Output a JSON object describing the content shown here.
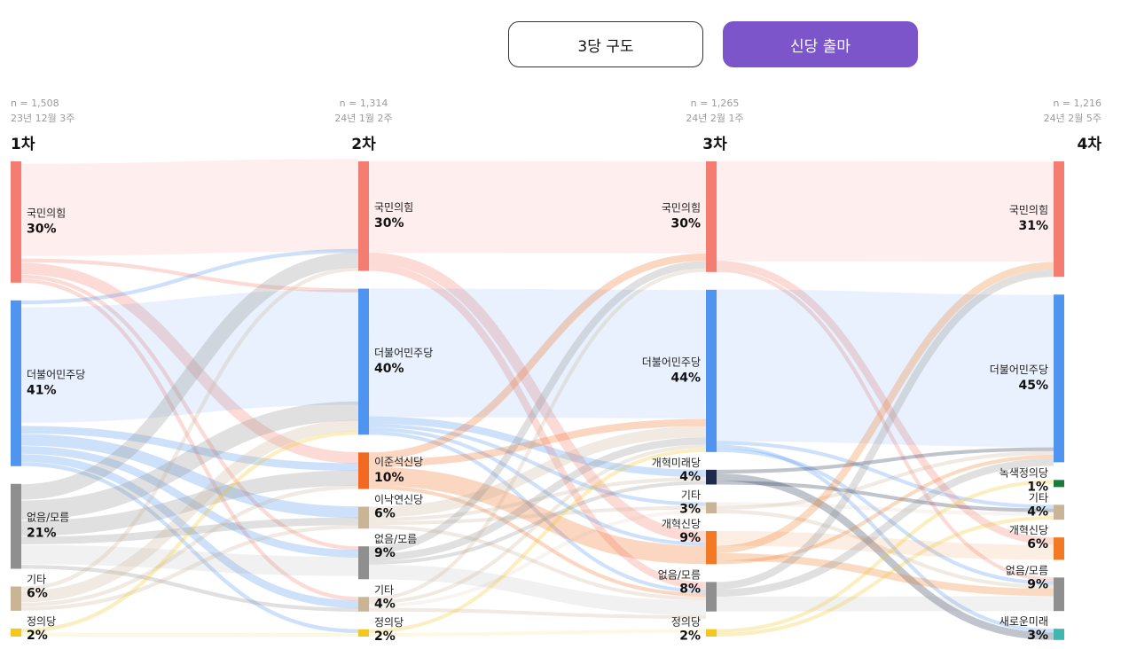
{
  "toggle": {
    "option_3party": "3당 구도",
    "option_newparty": "신당 출마",
    "selected": "option_newparty",
    "accent_color": "#7b55c9"
  },
  "columns": [
    {
      "n": "n = 1,508",
      "date": "23년 12월 3주",
      "round": "1차"
    },
    {
      "n": "n = 1,314",
      "date": "24년 1월 2주",
      "round": "2차"
    },
    {
      "n": "n = 1,265",
      "date": "24년 2월 1주",
      "round": "3차"
    },
    {
      "n": "n = 1,216",
      "date": "24년 2월 5주",
      "round": "4차"
    }
  ],
  "chart_data": {
    "type": "sankey",
    "title": "",
    "unit": "%",
    "stages": [
      "1차",
      "2차",
      "3차",
      "4차"
    ],
    "nodes": [
      [
        {
          "id": "s1_ppp",
          "name": "국민의힘",
          "pct": "30%",
          "value": 30,
          "color": "#f47c71"
        },
        {
          "id": "s1_dem",
          "name": "더불어민주당",
          "pct": "41%",
          "value": 41,
          "color": "#4f95ef"
        },
        {
          "id": "s1_none",
          "name": "없음/모름",
          "pct": "21%",
          "value": 21,
          "color": "#8f8f8f"
        },
        {
          "id": "s1_etc",
          "name": "기타",
          "pct": "6%",
          "value": 6,
          "color": "#c9b496"
        },
        {
          "id": "s1_jus",
          "name": "정의당",
          "pct": "2%",
          "value": 2,
          "color": "#f2c71f"
        }
      ],
      [
        {
          "id": "s2_ppp",
          "name": "국민의힘",
          "pct": "30%",
          "value": 30,
          "color": "#f47c71"
        },
        {
          "id": "s2_dem",
          "name": "더불어민주당",
          "pct": "40%",
          "value": 40,
          "color": "#4f95ef"
        },
        {
          "id": "s2_ljs",
          "name": "이준석신당",
          "pct": "10%",
          "value": 10,
          "color": "#f26a22"
        },
        {
          "id": "s2_lny",
          "name": "이낙연신당",
          "pct": "6%",
          "value": 6,
          "color": "#c9b496"
        },
        {
          "id": "s2_none",
          "name": "없음/모름",
          "pct": "9%",
          "value": 9,
          "color": "#8f8f8f"
        },
        {
          "id": "s2_etc",
          "name": "기타",
          "pct": "4%",
          "value": 4,
          "color": "#c9b496"
        },
        {
          "id": "s2_jus",
          "name": "정의당",
          "pct": "2%",
          "value": 2,
          "color": "#f2c71f"
        }
      ],
      [
        {
          "id": "s3_ppp",
          "name": "국민의힘",
          "pct": "30%",
          "value": 30,
          "color": "#f47c71"
        },
        {
          "id": "s3_dem",
          "name": "더불어민주당",
          "pct": "44%",
          "value": 44,
          "color": "#4f95ef"
        },
        {
          "id": "s3_rfu",
          "name": "개혁미래당",
          "pct": "4%",
          "value": 4,
          "color": "#1d2a4d"
        },
        {
          "id": "s3_etc",
          "name": "기타",
          "pct": "3%",
          "value": 3,
          "color": "#c9b496"
        },
        {
          "id": "s3_ref",
          "name": "개혁신당",
          "pct": "9%",
          "value": 9,
          "color": "#f27a24"
        },
        {
          "id": "s3_none",
          "name": "없음/모름",
          "pct": "8%",
          "value": 8,
          "color": "#8f8f8f"
        },
        {
          "id": "s3_jus",
          "name": "정의당",
          "pct": "2%",
          "value": 2,
          "color": "#f2c71f"
        }
      ],
      [
        {
          "id": "s4_ppp",
          "name": "국민의힘",
          "pct": "31%",
          "value": 31,
          "color": "#f47c71"
        },
        {
          "id": "s4_dem",
          "name": "더불어민주당",
          "pct": "45%",
          "value": 45,
          "color": "#4f95ef"
        },
        {
          "id": "s4_grn",
          "name": "녹색정의당",
          "pct": "1%",
          "value": 1,
          "color": "#1a7a3c"
        },
        {
          "id": "s4_etc",
          "name": "기타",
          "pct": "4%",
          "value": 4,
          "color": "#c9b496"
        },
        {
          "id": "s4_ref",
          "name": "개혁신당",
          "pct": "6%",
          "value": 6,
          "color": "#f27a24"
        },
        {
          "id": "s4_none",
          "name": "없음/모름",
          "pct": "9%",
          "value": 9,
          "color": "#8f8f8f"
        },
        {
          "id": "s4_nf",
          "name": "새로운미래",
          "pct": "3%",
          "value": 3,
          "color": "#3fb7b0"
        }
      ]
    ],
    "links": [
      {
        "source": "s1_ppp",
        "target": "s2_ppp",
        "value": 24
      },
      {
        "source": "s1_ppp",
        "target": "s2_dem",
        "value": 1
      },
      {
        "source": "s1_ppp",
        "target": "s2_ljs",
        "value": 3
      },
      {
        "source": "s1_ppp",
        "target": "s2_none",
        "value": 1
      },
      {
        "source": "s1_ppp",
        "target": "s2_etc",
        "value": 1
      },
      {
        "source": "s1_dem",
        "target": "s2_ppp",
        "value": 1
      },
      {
        "source": "s1_dem",
        "target": "s2_dem",
        "value": 30
      },
      {
        "source": "s1_dem",
        "target": "s2_ljs",
        "value": 2
      },
      {
        "source": "s1_dem",
        "target": "s2_lny",
        "value": 3
      },
      {
        "source": "s1_dem",
        "target": "s2_none",
        "value": 2
      },
      {
        "source": "s1_dem",
        "target": "s2_etc",
        "value": 2
      },
      {
        "source": "s1_dem",
        "target": "s2_jus",
        "value": 1
      },
      {
        "source": "s1_none",
        "target": "s2_ppp",
        "value": 4
      },
      {
        "source": "s1_none",
        "target": "s2_dem",
        "value": 5
      },
      {
        "source": "s1_none",
        "target": "s2_ljs",
        "value": 4
      },
      {
        "source": "s1_none",
        "target": "s2_lny",
        "value": 2
      },
      {
        "source": "s1_none",
        "target": "s2_none",
        "value": 5
      },
      {
        "source": "s1_none",
        "target": "s2_etc",
        "value": 1
      },
      {
        "source": "s1_etc",
        "target": "s2_ppp",
        "value": 1
      },
      {
        "source": "s1_etc",
        "target": "s2_dem",
        "value": 3
      },
      {
        "source": "s1_etc",
        "target": "s2_ljs",
        "value": 1
      },
      {
        "source": "s1_etc",
        "target": "s2_lny",
        "value": 1
      },
      {
        "source": "s1_jus",
        "target": "s2_dem",
        "value": 1
      },
      {
        "source": "s1_jus",
        "target": "s2_jus",
        "value": 1
      },
      {
        "source": "s2_ppp",
        "target": "s3_ppp",
        "value": 25
      },
      {
        "source": "s2_ppp",
        "target": "s3_ref",
        "value": 3
      },
      {
        "source": "s2_ppp",
        "target": "s3_none",
        "value": 2
      },
      {
        "source": "s2_dem",
        "target": "s3_dem",
        "value": 35
      },
      {
        "source": "s2_dem",
        "target": "s3_rfu",
        "value": 2
      },
      {
        "source": "s2_dem",
        "target": "s3_etc",
        "value": 1
      },
      {
        "source": "s2_dem",
        "target": "s3_ref",
        "value": 1
      },
      {
        "source": "s2_dem",
        "target": "s3_none",
        "value": 1
      },
      {
        "source": "s2_ljs",
        "target": "s3_ppp",
        "value": 2
      },
      {
        "source": "s2_ljs",
        "target": "s3_dem",
        "value": 2
      },
      {
        "source": "s2_ljs",
        "target": "s3_ref",
        "value": 5
      },
      {
        "source": "s2_ljs",
        "target": "s3_none",
        "value": 1
      },
      {
        "source": "s2_lny",
        "target": "s3_dem",
        "value": 3
      },
      {
        "source": "s2_lny",
        "target": "s3_rfu",
        "value": 1
      },
      {
        "source": "s2_lny",
        "target": "s3_etc",
        "value": 1
      },
      {
        "source": "s2_lny",
        "target": "s3_none",
        "value": 1
      },
      {
        "source": "s2_none",
        "target": "s3_ppp",
        "value": 2
      },
      {
        "source": "s2_none",
        "target": "s3_dem",
        "value": 2
      },
      {
        "source": "s2_none",
        "target": "s3_rfu",
        "value": 1
      },
      {
        "source": "s2_none",
        "target": "s3_none",
        "value": 4
      },
      {
        "source": "s2_etc",
        "target": "s3_ppp",
        "value": 1
      },
      {
        "source": "s2_etc",
        "target": "s3_dem",
        "value": 1
      },
      {
        "source": "s2_etc",
        "target": "s3_etc",
        "value": 1
      },
      {
        "source": "s2_etc",
        "target": "s3_none",
        "value": 1
      },
      {
        "source": "s2_jus",
        "target": "s3_dem",
        "value": 1
      },
      {
        "source": "s2_jus",
        "target": "s3_jus",
        "value": 1
      },
      {
        "source": "s3_ppp",
        "target": "s4_ppp",
        "value": 27
      },
      {
        "source": "s3_ppp",
        "target": "s4_ref",
        "value": 2
      },
      {
        "source": "s3_ppp",
        "target": "s4_none",
        "value": 1
      },
      {
        "source": "s3_dem",
        "target": "s4_dem",
        "value": 41
      },
      {
        "source": "s3_dem",
        "target": "s4_etc",
        "value": 1
      },
      {
        "source": "s3_dem",
        "target": "s4_nf",
        "value": 1
      },
      {
        "source": "s3_dem",
        "target": "s4_none",
        "value": 1
      },
      {
        "source": "s3_rfu",
        "target": "s4_dem",
        "value": 1
      },
      {
        "source": "s3_rfu",
        "target": "s4_nf",
        "value": 2
      },
      {
        "source": "s3_rfu",
        "target": "s4_etc",
        "value": 1
      },
      {
        "source": "s3_etc",
        "target": "s4_etc",
        "value": 1
      },
      {
        "source": "s3_etc",
        "target": "s4_dem",
        "value": 1
      },
      {
        "source": "s3_etc",
        "target": "s4_none",
        "value": 1
      },
      {
        "source": "s3_ref",
        "target": "s4_ref",
        "value": 4
      },
      {
        "source": "s3_ref",
        "target": "s4_ppp",
        "value": 2
      },
      {
        "source": "s3_ref",
        "target": "s4_none",
        "value": 2
      },
      {
        "source": "s3_ref",
        "target": "s4_dem",
        "value": 1
      },
      {
        "source": "s3_none",
        "target": "s4_ppp",
        "value": 2
      },
      {
        "source": "s3_none",
        "target": "s4_dem",
        "value": 2
      },
      {
        "source": "s3_none",
        "target": "s4_none",
        "value": 4
      },
      {
        "source": "s3_jus",
        "target": "s4_grn",
        "value": 1
      },
      {
        "source": "s3_jus",
        "target": "s4_etc",
        "value": 1
      }
    ]
  }
}
